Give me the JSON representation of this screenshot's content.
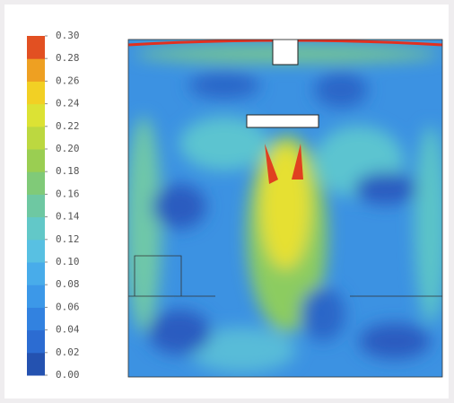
{
  "chart_data": {
    "type": "contour",
    "colorbar": {
      "lim": [
        0,
        0.3
      ],
      "ticks": [
        {
          "value": 0,
          "label": "0.00"
        },
        {
          "value": 0.02,
          "label": "0.02"
        },
        {
          "value": 0.04,
          "label": "0.04"
        },
        {
          "value": 0.06,
          "label": "0.06"
        },
        {
          "value": 0.08,
          "label": "0.08"
        },
        {
          "value": 0.1,
          "label": "0.10"
        },
        {
          "value": 0.12,
          "label": "0.12"
        },
        {
          "value": 0.14,
          "label": "0.14"
        },
        {
          "value": 0.16,
          "label": "0.16"
        },
        {
          "value": 0.18,
          "label": "0.18"
        },
        {
          "value": 0.2,
          "label": "0.20"
        },
        {
          "value": 0.22,
          "label": "0.22"
        },
        {
          "value": 0.24,
          "label": "0.24"
        },
        {
          "value": 0.26,
          "label": "0.26"
        },
        {
          "value": 0.28,
          "label": "0.28"
        },
        {
          "value": 0.3,
          "label": "0.30"
        }
      ],
      "colors": [
        "#2452b0",
        "#2c6cd2",
        "#3282e0",
        "#3c98e8",
        "#48acea",
        "#58c0e2",
        "#62c8c8",
        "#6ec8a2",
        "#80ca78",
        "#9ace52",
        "#bcd840",
        "#dce234",
        "#f2d024",
        "#eea022",
        "#e25022"
      ]
    }
  }
}
